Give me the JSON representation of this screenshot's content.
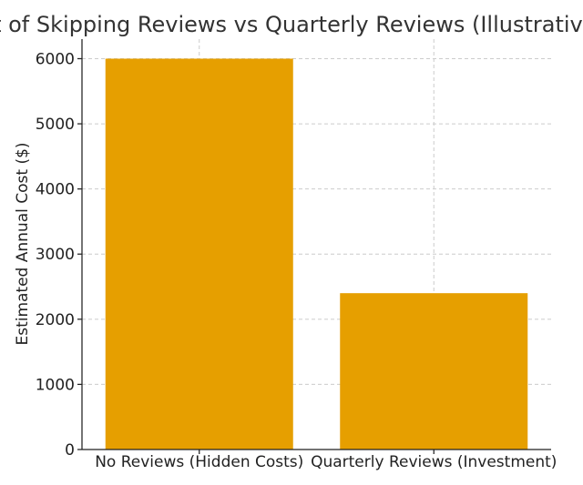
{
  "chart_data": {
    "type": "bar",
    "title": "Cost of Skipping Reviews vs Quarterly Reviews (Illustrative)",
    "xlabel": "",
    "ylabel": "Estimated Annual Cost ($)",
    "categories": [
      "No Reviews (Hidden Costs)",
      "Quarterly Reviews (Investment)"
    ],
    "values": [
      6000,
      2400
    ],
    "ylim": [
      0,
      6300
    ],
    "yticks": [
      0,
      1000,
      2000,
      3000,
      4000,
      5000,
      6000
    ],
    "bar_color": "#e69f00",
    "grid": true,
    "legend": "none"
  }
}
